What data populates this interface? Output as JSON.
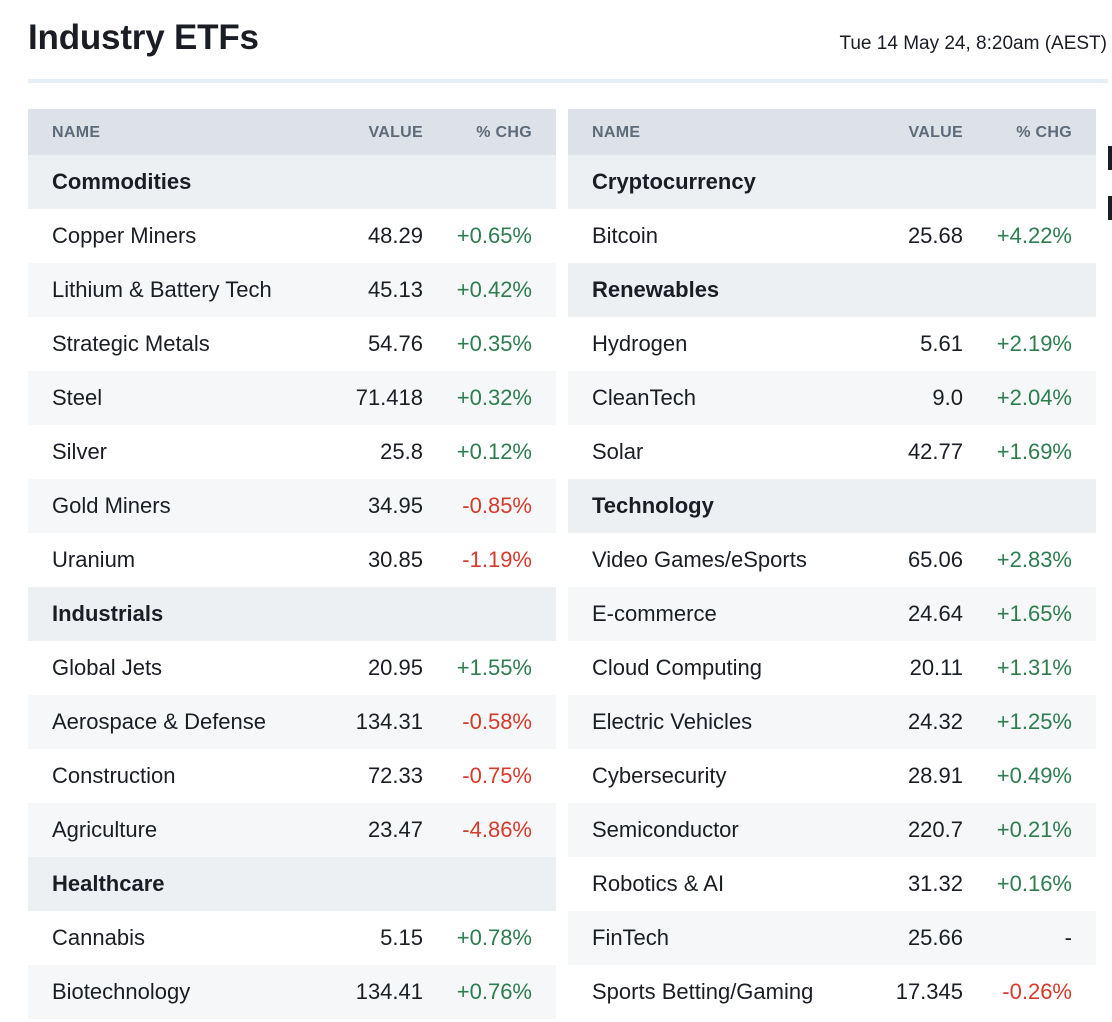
{
  "header": {
    "title": "Industry ETFs",
    "timestamp": "Tue 14 May 24, 8:20am (AEST)"
  },
  "columns": {
    "name": "NAME",
    "value": "VALUE",
    "change": "% CHG"
  },
  "colors": {
    "positive": "#2e7d4e",
    "negative": "#d63a2b",
    "header_bg": "#dde2e8"
  },
  "left": [
    {
      "type": "section",
      "name": "Commodities"
    },
    {
      "type": "row",
      "name": "Copper Miners",
      "value": "48.29",
      "change": "+0.65%",
      "dir": "pos"
    },
    {
      "type": "row",
      "name": "Lithium & Battery Tech",
      "value": "45.13",
      "change": "+0.42%",
      "dir": "pos"
    },
    {
      "type": "row",
      "name": "Strategic Metals",
      "value": "54.76",
      "change": "+0.35%",
      "dir": "pos"
    },
    {
      "type": "row",
      "name": "Steel",
      "value": "71.418",
      "change": "+0.32%",
      "dir": "pos"
    },
    {
      "type": "row",
      "name": "Silver",
      "value": "25.8",
      "change": "+0.12%",
      "dir": "pos"
    },
    {
      "type": "row",
      "name": "Gold Miners",
      "value": "34.95",
      "change": "-0.85%",
      "dir": "neg"
    },
    {
      "type": "row",
      "name": "Uranium",
      "value": "30.85",
      "change": "-1.19%",
      "dir": "neg"
    },
    {
      "type": "section",
      "name": "Industrials"
    },
    {
      "type": "row",
      "name": "Global Jets",
      "value": "20.95",
      "change": "+1.55%",
      "dir": "pos"
    },
    {
      "type": "row",
      "name": "Aerospace & Defense",
      "value": "134.31",
      "change": "-0.58%",
      "dir": "neg"
    },
    {
      "type": "row",
      "name": "Construction",
      "value": "72.33",
      "change": "-0.75%",
      "dir": "neg"
    },
    {
      "type": "row",
      "name": "Agriculture",
      "value": "23.47",
      "change": "-4.86%",
      "dir": "neg"
    },
    {
      "type": "section",
      "name": "Healthcare"
    },
    {
      "type": "row",
      "name": "Cannabis",
      "value": "5.15",
      "change": "+0.78%",
      "dir": "pos"
    },
    {
      "type": "row",
      "name": "Biotechnology",
      "value": "134.41",
      "change": "+0.76%",
      "dir": "pos"
    }
  ],
  "right": [
    {
      "type": "section",
      "name": "Cryptocurrency"
    },
    {
      "type": "row",
      "name": "Bitcoin",
      "value": "25.68",
      "change": "+4.22%",
      "dir": "pos"
    },
    {
      "type": "section",
      "name": "Renewables"
    },
    {
      "type": "row",
      "name": "Hydrogen",
      "value": "5.61",
      "change": "+2.19%",
      "dir": "pos"
    },
    {
      "type": "row",
      "name": "CleanTech",
      "value": "9.0",
      "change": "+2.04%",
      "dir": "pos"
    },
    {
      "type": "row",
      "name": "Solar",
      "value": "42.77",
      "change": "+1.69%",
      "dir": "pos"
    },
    {
      "type": "section",
      "name": "Technology"
    },
    {
      "type": "row",
      "name": "Video Games/eSports",
      "value": "65.06",
      "change": "+2.83%",
      "dir": "pos"
    },
    {
      "type": "row",
      "name": "E-commerce",
      "value": "24.64",
      "change": "+1.65%",
      "dir": "pos"
    },
    {
      "type": "row",
      "name": "Cloud Computing",
      "value": "20.11",
      "change": "+1.31%",
      "dir": "pos"
    },
    {
      "type": "row",
      "name": "Electric Vehicles",
      "value": "24.32",
      "change": "+1.25%",
      "dir": "pos"
    },
    {
      "type": "row",
      "name": "Cybersecurity",
      "value": "28.91",
      "change": "+0.49%",
      "dir": "pos"
    },
    {
      "type": "row",
      "name": "Semiconductor",
      "value": "220.7",
      "change": "+0.21%",
      "dir": "pos"
    },
    {
      "type": "row",
      "name": "Robotics & AI",
      "value": "31.32",
      "change": "+0.16%",
      "dir": "pos"
    },
    {
      "type": "row",
      "name": "FinTech",
      "value": "25.66",
      "change": "-",
      "dir": "flat"
    },
    {
      "type": "row",
      "name": "Sports Betting/Gaming",
      "value": "17.345",
      "change": "-0.26%",
      "dir": "neg"
    }
  ]
}
